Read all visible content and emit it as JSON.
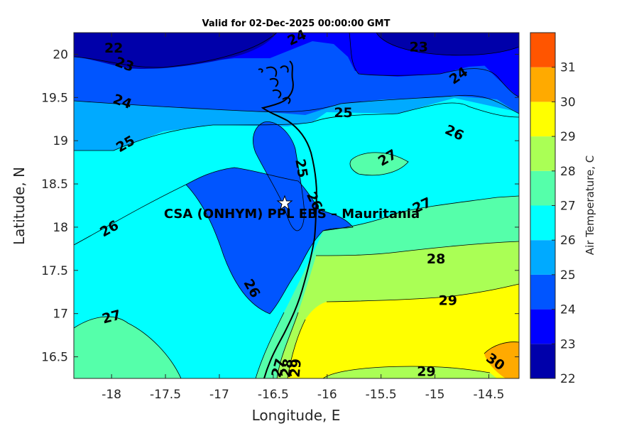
{
  "title": "Valid for 02-Dec-2025 00:00:00 GMT",
  "site": {
    "label": "CSA (ONHYM) PPL EBS  – Mauritania",
    "lon": -16.33,
    "lat": 18.28
  },
  "axes": {
    "xlabel": "Longitude, E",
    "ylabel": "Latitude, N",
    "xlim": [
      -18.35,
      -14.22
    ],
    "ylim": [
      16.25,
      20.25
    ],
    "xticks": [
      -18,
      -17.5,
      -17,
      -16.5,
      -16,
      -15.5,
      -15,
      -14.5
    ],
    "xtick_labels": [
      "-18",
      "-17.5",
      "-17",
      "-16.5",
      "-16",
      "-15.5",
      "-15",
      "-14.5"
    ],
    "yticks": [
      16.5,
      17,
      17.5,
      18,
      18.5,
      19,
      19.5,
      20
    ],
    "ytick_labels": [
      "16.5",
      "17",
      "17.5",
      "18",
      "18.5",
      "19",
      "19.5",
      "20"
    ]
  },
  "colorbar": {
    "label": "Air Temperature, C",
    "levels": [
      22,
      23,
      24,
      25,
      26,
      27,
      28,
      29,
      30,
      31
    ],
    "level_labels": [
      "22",
      "23",
      "24",
      "25",
      "26",
      "27",
      "28",
      "29",
      "30",
      "31"
    ],
    "colors": [
      "#0000aa",
      "#0000ff",
      "#0055ff",
      "#00aaff",
      "#00ffff",
      "#55ffaa",
      "#aaff55",
      "#ffff00",
      "#ffaa00",
      "#ff5500"
    ]
  },
  "contour_labels": [
    {
      "text": "22",
      "lon": -17.98,
      "lat": 20.07,
      "rot": 0
    },
    {
      "text": "23",
      "lon": -17.88,
      "lat": 19.88,
      "rot": 20
    },
    {
      "text": "24",
      "lon": -16.28,
      "lat": 20.19,
      "rot": -25
    },
    {
      "text": "23",
      "lon": -15.15,
      "lat": 20.08,
      "rot": 0
    },
    {
      "text": "24",
      "lon": -14.78,
      "lat": 19.75,
      "rot": -35
    },
    {
      "text": "24",
      "lon": -17.9,
      "lat": 19.45,
      "rot": 20
    },
    {
      "text": "25",
      "lon": -15.85,
      "lat": 19.32,
      "rot": 0
    },
    {
      "text": "25",
      "lon": -17.87,
      "lat": 18.96,
      "rot": -30
    },
    {
      "text": "26",
      "lon": -14.82,
      "lat": 19.09,
      "rot": 25
    },
    {
      "text": "27",
      "lon": -15.44,
      "lat": 18.8,
      "rot": -30
    },
    {
      "text": "25",
      "lon": -16.24,
      "lat": 18.68,
      "rot": 80
    },
    {
      "text": "26",
      "lon": -16.12,
      "lat": 18.3,
      "rot": 65
    },
    {
      "text": "26",
      "lon": -18.02,
      "lat": 17.98,
      "rot": -30
    },
    {
      "text": "27",
      "lon": -15.12,
      "lat": 18.25,
      "rot": -25
    },
    {
      "text": "28",
      "lon": -14.99,
      "lat": 17.63,
      "rot": 0
    },
    {
      "text": "26",
      "lon": -16.7,
      "lat": 17.29,
      "rot": 60
    },
    {
      "text": "29",
      "lon": -14.88,
      "lat": 17.15,
      "rot": 0
    },
    {
      "text": "27",
      "lon": -18.0,
      "lat": 16.96,
      "rot": -15
    },
    {
      "text": "27",
      "lon": -16.45,
      "lat": 16.37,
      "rot": -75
    },
    {
      "text": "28",
      "lon": -16.37,
      "lat": 16.37,
      "rot": -80
    },
    {
      "text": "29",
      "lon": -16.29,
      "lat": 16.37,
      "rot": -85
    },
    {
      "text": "29",
      "lon": -15.08,
      "lat": 16.33,
      "rot": 0
    },
    {
      "text": "30",
      "lon": -14.44,
      "lat": 16.44,
      "rot": 35
    }
  ]
}
